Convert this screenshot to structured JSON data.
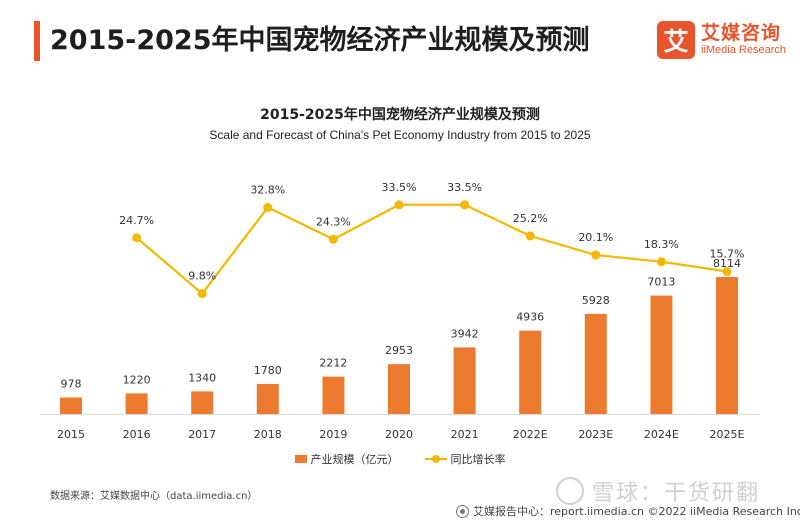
{
  "header": {
    "title": "2015-2025年中国宠物经济产业规模及预测",
    "accent_color": "#e8542b"
  },
  "logo": {
    "mark": "艾",
    "name_cn": "艾媒咨询",
    "name_en": "iiMedia Research"
  },
  "chart_data": {
    "type": "bar+line",
    "title": "2015-2025年中国宠物经济产业规模及预测",
    "subtitle": "Scale and Forecast of China's Pet Economy Industry from 2015 to 2025",
    "categories": [
      "2015",
      "2016",
      "2017",
      "2018",
      "2019",
      "2020",
      "2021",
      "2022E",
      "2023E",
      "2024E",
      "2025E"
    ],
    "series": [
      {
        "name": "产业规模（亿元）",
        "type": "bar",
        "color": "#ec7a2f",
        "values": [
          978,
          1220,
          1340,
          1780,
          2212,
          2953,
          3942,
          4936,
          5928,
          7013,
          8114
        ],
        "labels": [
          "978",
          "1220",
          "1340",
          "1780",
          "2212",
          "2953",
          "3942",
          "4936",
          "5928",
          "7013",
          "8114"
        ]
      },
      {
        "name": "同比增长率",
        "type": "line",
        "color": "#f5b800",
        "values": [
          null,
          24.7,
          9.8,
          32.8,
          24.3,
          33.5,
          33.5,
          25.2,
          20.1,
          18.3,
          15.7
        ],
        "labels": [
          "",
          "24.7%",
          "9.8%",
          "32.8%",
          "24.3%",
          "33.5%",
          "33.5%",
          "25.2%",
          "20.1%",
          "18.3%",
          "15.7%"
        ]
      }
    ],
    "legend_position": "bottom-center",
    "grid": false
  },
  "legend": {
    "bar_label": "产业规模（亿元）",
    "line_label": "同比增长率"
  },
  "source": "数据来源：艾媒数据中心（data.iimedia.cn）",
  "footer": "艾媒报告中心：report.iimedia.cn  ©2022  iiMedia Research Inc",
  "watermark": "雪球：干货研翻"
}
